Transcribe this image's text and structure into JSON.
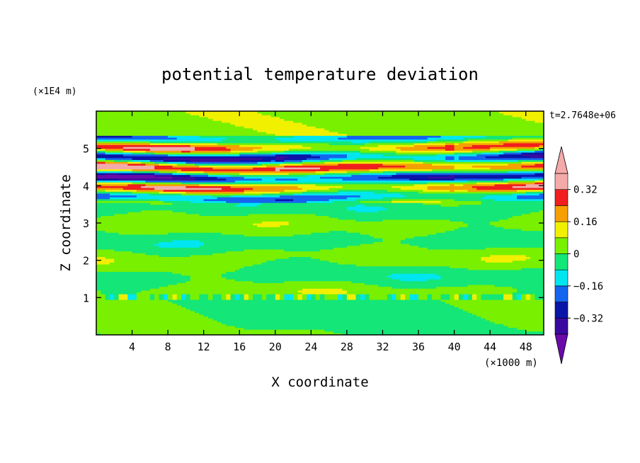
{
  "chart_data": {
    "type": "heatmap",
    "title": "potential temperature deviation",
    "xlabel": "X coordinate",
    "ylabel": "Z coordinate",
    "x_unit": "(×1000 m)",
    "y_unit": "(×1E4 m)",
    "time_label": "t=2.7648e+06",
    "xlim": [
      0,
      50
    ],
    "ylim": [
      0,
      6
    ],
    "x_ticks": [
      4,
      8,
      12,
      16,
      20,
      24,
      28,
      32,
      36,
      40,
      44,
      48
    ],
    "y_ticks": [
      1,
      2,
      3,
      4,
      5
    ],
    "colorbar": {
      "levels": [
        -0.4,
        -0.32,
        -0.24,
        -0.16,
        -0.08,
        0,
        0.08,
        0.16,
        0.24,
        0.32,
        0.4
      ],
      "labels": [
        "0.32",
        "0.16",
        "0",
        "−0.16",
        "−0.32"
      ],
      "label_values": [
        0.32,
        0.16,
        0,
        -0.16,
        -0.32
      ],
      "colors": [
        "#6a0aa8",
        "#3a0aa0",
        "#0a14a8",
        "#1464f0",
        "#00e6f0",
        "#14e678",
        "#78f000",
        "#f0f000",
        "#f5a000",
        "#f01e1e",
        "#f5aaaa"
      ]
    },
    "bands": [
      {
        "z": [
          0.3,
          0.95
        ],
        "pattern": "patchy-green"
      },
      {
        "z": [
          0.95,
          1.15
        ],
        "pattern": "thin-layer-mixed"
      },
      {
        "z": [
          1.2,
          3.5
        ],
        "pattern": "wavy-green-bands"
      },
      {
        "z": [
          3.6,
          5.3
        ],
        "pattern": "strong-layered-red-blue"
      },
      {
        "z": [
          5.3,
          6.0
        ],
        "pattern": "green-light"
      }
    ]
  }
}
